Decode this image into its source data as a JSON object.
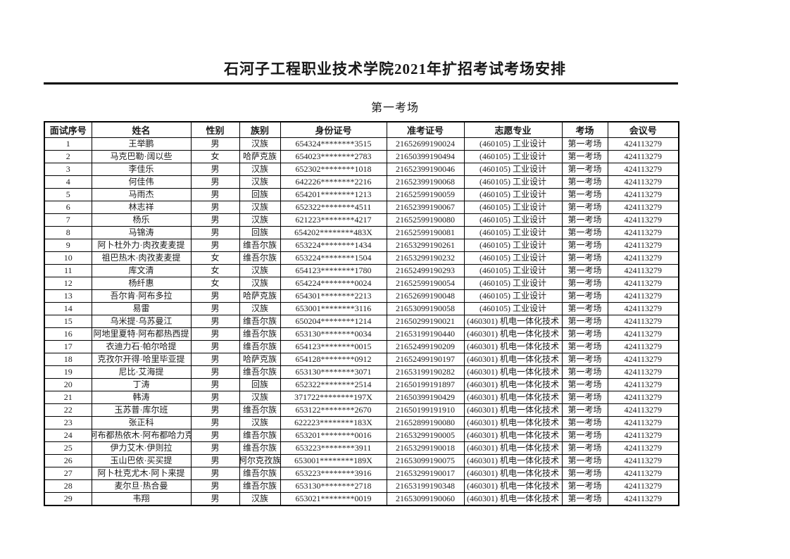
{
  "title": "石河子工程职业技术学院2021年扩招考试考场安排",
  "subtitle": "第一考场",
  "colors": {
    "text": "#1a1a1a",
    "border": "#000000",
    "background": "#ffffff"
  },
  "table": {
    "headers": [
      "面试序号",
      "姓名",
      "性别",
      "族别",
      "身份证号",
      "准考证号",
      "志愿专业",
      "考场",
      "会议号"
    ],
    "column_names": [
      "serial",
      "name",
      "gender",
      "ethnicity",
      "id-number",
      "ticket-number",
      "major",
      "exam-room",
      "meeting-id"
    ],
    "rows": [
      [
        "1",
        "王举鹏",
        "男",
        "汉族",
        "654324********3515",
        "21652699190024",
        "(460105) 工业设计",
        "第一考场",
        "424113279"
      ],
      [
        "2",
        "马克巴勒·阔以些",
        "女",
        "哈萨克族",
        "654023********2783",
        "21650399190494",
        "(460105) 工业设计",
        "第一考场",
        "424113279"
      ],
      [
        "3",
        "李佳乐",
        "男",
        "汉族",
        "652302********1018",
        "21652399190046",
        "(460105) 工业设计",
        "第一考场",
        "424113279"
      ],
      [
        "4",
        "何佳伟",
        "男",
        "汉族",
        "642226********2216",
        "21652399190068",
        "(460105) 工业设计",
        "第一考场",
        "424113279"
      ],
      [
        "5",
        "马雨杰",
        "男",
        "回族",
        "654201********1213",
        "21652599190059",
        "(460105) 工业设计",
        "第一考场",
        "424113279"
      ],
      [
        "6",
        "林志祥",
        "男",
        "汉族",
        "652322********4511",
        "21652399190067",
        "(460105) 工业设计",
        "第一考场",
        "424113279"
      ],
      [
        "7",
        "杨乐",
        "男",
        "汉族",
        "621223********4217",
        "21652599190080",
        "(460105) 工业设计",
        "第一考场",
        "424113279"
      ],
      [
        "8",
        "马锦涛",
        "男",
        "回族",
        "654202********483X",
        "21652599190081",
        "(460105) 工业设计",
        "第一考场",
        "424113279"
      ],
      [
        "9",
        "阿卜杜外力·肉孜麦麦提",
        "男",
        "维吾尔族",
        "653224********1434",
        "21653299190261",
        "(460105) 工业设计",
        "第一考场",
        "424113279"
      ],
      [
        "10",
        "祖巴热木·肉孜麦麦提",
        "女",
        "维吾尔族",
        "653224********1504",
        "21653299190232",
        "(460105) 工业设计",
        "第一考场",
        "424113279"
      ],
      [
        "11",
        "库文清",
        "女",
        "汉族",
        "654123********1780",
        "21652499190293",
        "(460105) 工业设计",
        "第一考场",
        "424113279"
      ],
      [
        "12",
        "杨纤惠",
        "女",
        "汉族",
        "654224********0024",
        "21652599190054",
        "(460105) 工业设计",
        "第一考场",
        "424113279"
      ],
      [
        "13",
        "吾尔肯·阿布多拉",
        "男",
        "哈萨克族",
        "654301********2213",
        "21652699190048",
        "(460105) 工业设计",
        "第一考场",
        "424113279"
      ],
      [
        "14",
        "易雷",
        "男",
        "汉族",
        "653001********3116",
        "21653099190058",
        "(460105) 工业设计",
        "第一考场",
        "424113279"
      ],
      [
        "15",
        "乌米提·乌苏曼江",
        "男",
        "维吾尔族",
        "650204********1214",
        "21650299190021",
        "(460301) 机电一体化技术",
        "第一考场",
        "424113279"
      ],
      [
        "16",
        "阿地里夏特·阿布都热西提",
        "男",
        "维吾尔族",
        "653130********0034",
        "21653199190440",
        "(460301) 机电一体化技术",
        "第一考场",
        "424113279"
      ],
      [
        "17",
        "衣迪力石·帕尔哈提",
        "男",
        "维吾尔族",
        "654123********0015",
        "21652499190209",
        "(460301) 机电一体化技术",
        "第一考场",
        "424113279"
      ],
      [
        "18",
        "克孜尔开得·哈里毕亚提",
        "男",
        "哈萨克族",
        "654128********0912",
        "21652499190197",
        "(460301) 机电一体化技术",
        "第一考场",
        "424113279"
      ],
      [
        "19",
        "尼比·艾海提",
        "男",
        "维吾尔族",
        "653130********3071",
        "21653199190282",
        "(460301) 机电一体化技术",
        "第一考场",
        "424113279"
      ],
      [
        "20",
        "丁涛",
        "男",
        "回族",
        "652322********2514",
        "21650199191897",
        "(460301) 机电一体化技术",
        "第一考场",
        "424113279"
      ],
      [
        "21",
        "韩涛",
        "男",
        "汉族",
        "371722********197X",
        "21650399190429",
        "(460301) 机电一体化技术",
        "第一考场",
        "424113279"
      ],
      [
        "22",
        "玉苏普·库尔班",
        "男",
        "维吾尔族",
        "653122********2670",
        "21650199191910",
        "(460301) 机电一体化技术",
        "第一考场",
        "424113279"
      ],
      [
        "23",
        "张正科",
        "男",
        "汉族",
        "622223********183X",
        "21652899190080",
        "(460301) 机电一体化技术",
        "第一考场",
        "424113279"
      ],
      [
        "24",
        "阿布都热依木·阿布都哈力克",
        "男",
        "维吾尔族",
        "653201********0016",
        "21653299190005",
        "(460301) 机电一体化技术",
        "第一考场",
        "424113279"
      ],
      [
        "25",
        "伊力艾木·伊则拉",
        "男",
        "维吾尔族",
        "653223********3911",
        "21653299190018",
        "(460301) 机电一体化技术",
        "第一考场",
        "424113279"
      ],
      [
        "26",
        "玉山巴依·买买提",
        "男",
        "柯尔克孜族",
        "653001********189X",
        "21653099190075",
        "(460301) 机电一体化技术",
        "第一考场",
        "424113279"
      ],
      [
        "27",
        "阿卜杜克尤木·阿卜来提",
        "男",
        "维吾尔族",
        "653223********3916",
        "21653299190017",
        "(460301) 机电一体化技术",
        "第一考场",
        "424113279"
      ],
      [
        "28",
        "麦尔旦·热合曼",
        "男",
        "维吾尔族",
        "653130********2718",
        "21653199190348",
        "(460301) 机电一体化技术",
        "第一考场",
        "424113279"
      ],
      [
        "29",
        "韦翔",
        "男",
        "汉族",
        "653021********0019",
        "21653099190060",
        "(460301) 机电一体化技术",
        "第一考场",
        "424113279"
      ]
    ]
  }
}
